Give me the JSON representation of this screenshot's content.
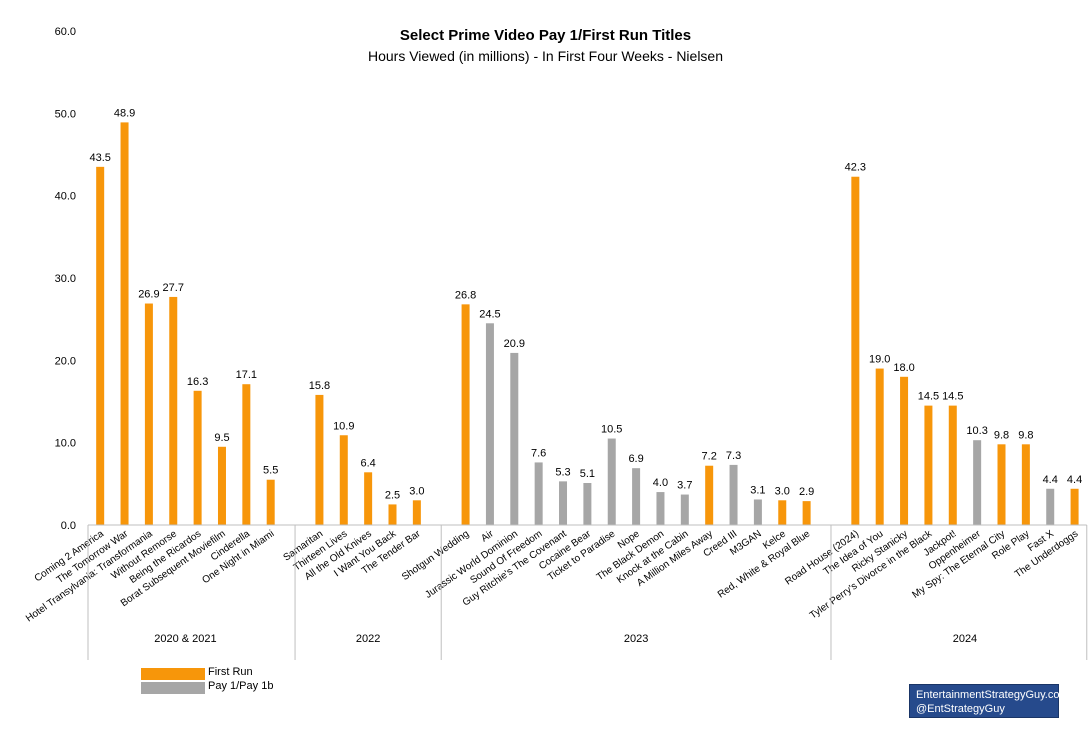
{
  "chart_data": {
    "type": "bar",
    "title": "Select Prime Video Pay 1/First Run Titles",
    "subtitle": "Hours Viewed (in millions) - In First Four Weeks - Nielsen",
    "ylim": [
      0,
      60
    ],
    "yticks": [
      "0.0",
      "10.0",
      "20.0",
      "30.0",
      "40.0",
      "50.0",
      "60.0"
    ],
    "grid": false,
    "legend_position": "bottom-left",
    "colors": {
      "First Run": "#f7960a",
      "Pay 1/Pay 1b": "#a6a6a6"
    },
    "series": [
      {
        "name": "First Run"
      },
      {
        "name": "Pay 1/Pay 1b"
      }
    ],
    "groups": [
      {
        "name": "2020 & 2021",
        "bars": [
          {
            "label": "Coming 2 America",
            "value": 43.5,
            "value_label": "43.5",
            "type": "First Run"
          },
          {
            "label": "The Tomorrow War",
            "value": 48.9,
            "value_label": "48.9",
            "type": "First Run"
          },
          {
            "label": "Hotel Transylvania: Transformania",
            "value": 26.9,
            "value_label": "26.9",
            "type": "First Run"
          },
          {
            "label": "Without Remorse",
            "value": 27.7,
            "value_label": "27.7",
            "type": "First Run"
          },
          {
            "label": "Being the Ricardos",
            "value": 16.3,
            "value_label": "16.3",
            "type": "First Run"
          },
          {
            "label": "Borat Subsequent Moviefilm",
            "value": 9.5,
            "value_label": "9.5",
            "type": "First Run"
          },
          {
            "label": "Cinderella",
            "value": 17.1,
            "value_label": "17.1",
            "type": "First Run"
          },
          {
            "label": "One Night in Miami",
            "value": 5.5,
            "value_label": "5.5",
            "type": "First Run"
          }
        ]
      },
      {
        "name": "2022",
        "bars": [
          {
            "label": "Samaritan",
            "value": 15.8,
            "value_label": "15.8",
            "type": "First Run"
          },
          {
            "label": "Thirteen Lives",
            "value": 10.9,
            "value_label": "10.9",
            "type": "First Run"
          },
          {
            "label": "All the Old Knives",
            "value": 6.4,
            "value_label": "6.4",
            "type": "First Run"
          },
          {
            "label": "I Want You Back",
            "value": 2.5,
            "value_label": "2.5",
            "type": "First Run"
          },
          {
            "label": "The Tender Bar",
            "value": 3.0,
            "value_label": "3.0",
            "type": "First Run"
          }
        ]
      },
      {
        "name": "2023",
        "bars": [
          {
            "label": "Shotgun Wedding",
            "value": 26.8,
            "value_label": "26.8",
            "type": "First Run"
          },
          {
            "label": "Air",
            "value": 24.5,
            "value_label": "24.5",
            "type": "Pay 1/Pay 1b"
          },
          {
            "label": "Jurassic World Dominion",
            "value": 20.9,
            "value_label": "20.9",
            "type": "Pay 1/Pay 1b"
          },
          {
            "label": "Sound Of Freedom",
            "value": 7.6,
            "value_label": "7.6",
            "type": "Pay 1/Pay 1b"
          },
          {
            "label": "Guy Ritchie's The Covenant",
            "value": 5.3,
            "value_label": "5.3",
            "type": "Pay 1/Pay 1b"
          },
          {
            "label": "Cocaine Bear",
            "value": 5.1,
            "value_label": "5.1",
            "type": "Pay 1/Pay 1b"
          },
          {
            "label": "Ticket to Paradise",
            "value": 10.5,
            "value_label": "10.5",
            "type": "Pay 1/Pay 1b"
          },
          {
            "label": "Nope",
            "value": 6.9,
            "value_label": "6.9",
            "type": "Pay 1/Pay 1b"
          },
          {
            "label": "The Black Demon",
            "value": 4.0,
            "value_label": "4.0",
            "type": "Pay 1/Pay 1b"
          },
          {
            "label": "Knock at the Cabin",
            "value": 3.7,
            "value_label": "3.7",
            "type": "Pay 1/Pay 1b"
          },
          {
            "label": "A Million Miles Away",
            "value": 7.2,
            "value_label": "7.2",
            "type": "First Run"
          },
          {
            "label": "Creed III",
            "value": 7.3,
            "value_label": "7.3",
            "type": "Pay 1/Pay 1b"
          },
          {
            "label": "M3GAN",
            "value": 3.1,
            "value_label": "3.1",
            "type": "Pay 1/Pay 1b"
          },
          {
            "label": "Kelce",
            "value": 3.0,
            "value_label": "3.0",
            "type": "First Run"
          },
          {
            "label": "Red, White & Royal Blue",
            "value": 2.9,
            "value_label": "2.9",
            "type": "First Run"
          }
        ]
      },
      {
        "name": "2024",
        "bars": [
          {
            "label": "Road House (2024)",
            "value": 42.3,
            "value_label": "42.3",
            "type": "First Run"
          },
          {
            "label": "The Idea of You",
            "value": 19.0,
            "value_label": "19.0",
            "type": "First Run"
          },
          {
            "label": "Ricky Stanicky",
            "value": 18.0,
            "value_label": "18.0",
            "type": "First Run"
          },
          {
            "label": "Tyler Perry's Divorce in the Black",
            "value": 14.5,
            "value_label": "14.5",
            "type": "First Run"
          },
          {
            "label": "Jackpot!",
            "value": 14.5,
            "value_label": "14.5",
            "type": "First Run"
          },
          {
            "label": "Oppenheimer",
            "value": 10.3,
            "value_label": "10.3",
            "type": "Pay 1/Pay 1b"
          },
          {
            "label": "My Spy: The Eternal City",
            "value": 9.8,
            "value_label": "9.8",
            "type": "First Run"
          },
          {
            "label": "Role Play",
            "value": 9.8,
            "value_label": "9.8",
            "type": "First Run"
          },
          {
            "label": "Fast X",
            "value": 4.4,
            "value_label": "4.4",
            "type": "Pay 1/Pay 1b"
          },
          {
            "label": "The Underdoggs",
            "value": 4.4,
            "value_label": "4.4",
            "type": "First Run"
          }
        ]
      }
    ]
  },
  "legend": {
    "first_run_label": "First Run",
    "pay_label": "Pay 1/Pay 1b"
  },
  "watermark": {
    "line1": "EntertainmentStrategyGuy.com",
    "line2": "@EntStrategyGuy"
  }
}
